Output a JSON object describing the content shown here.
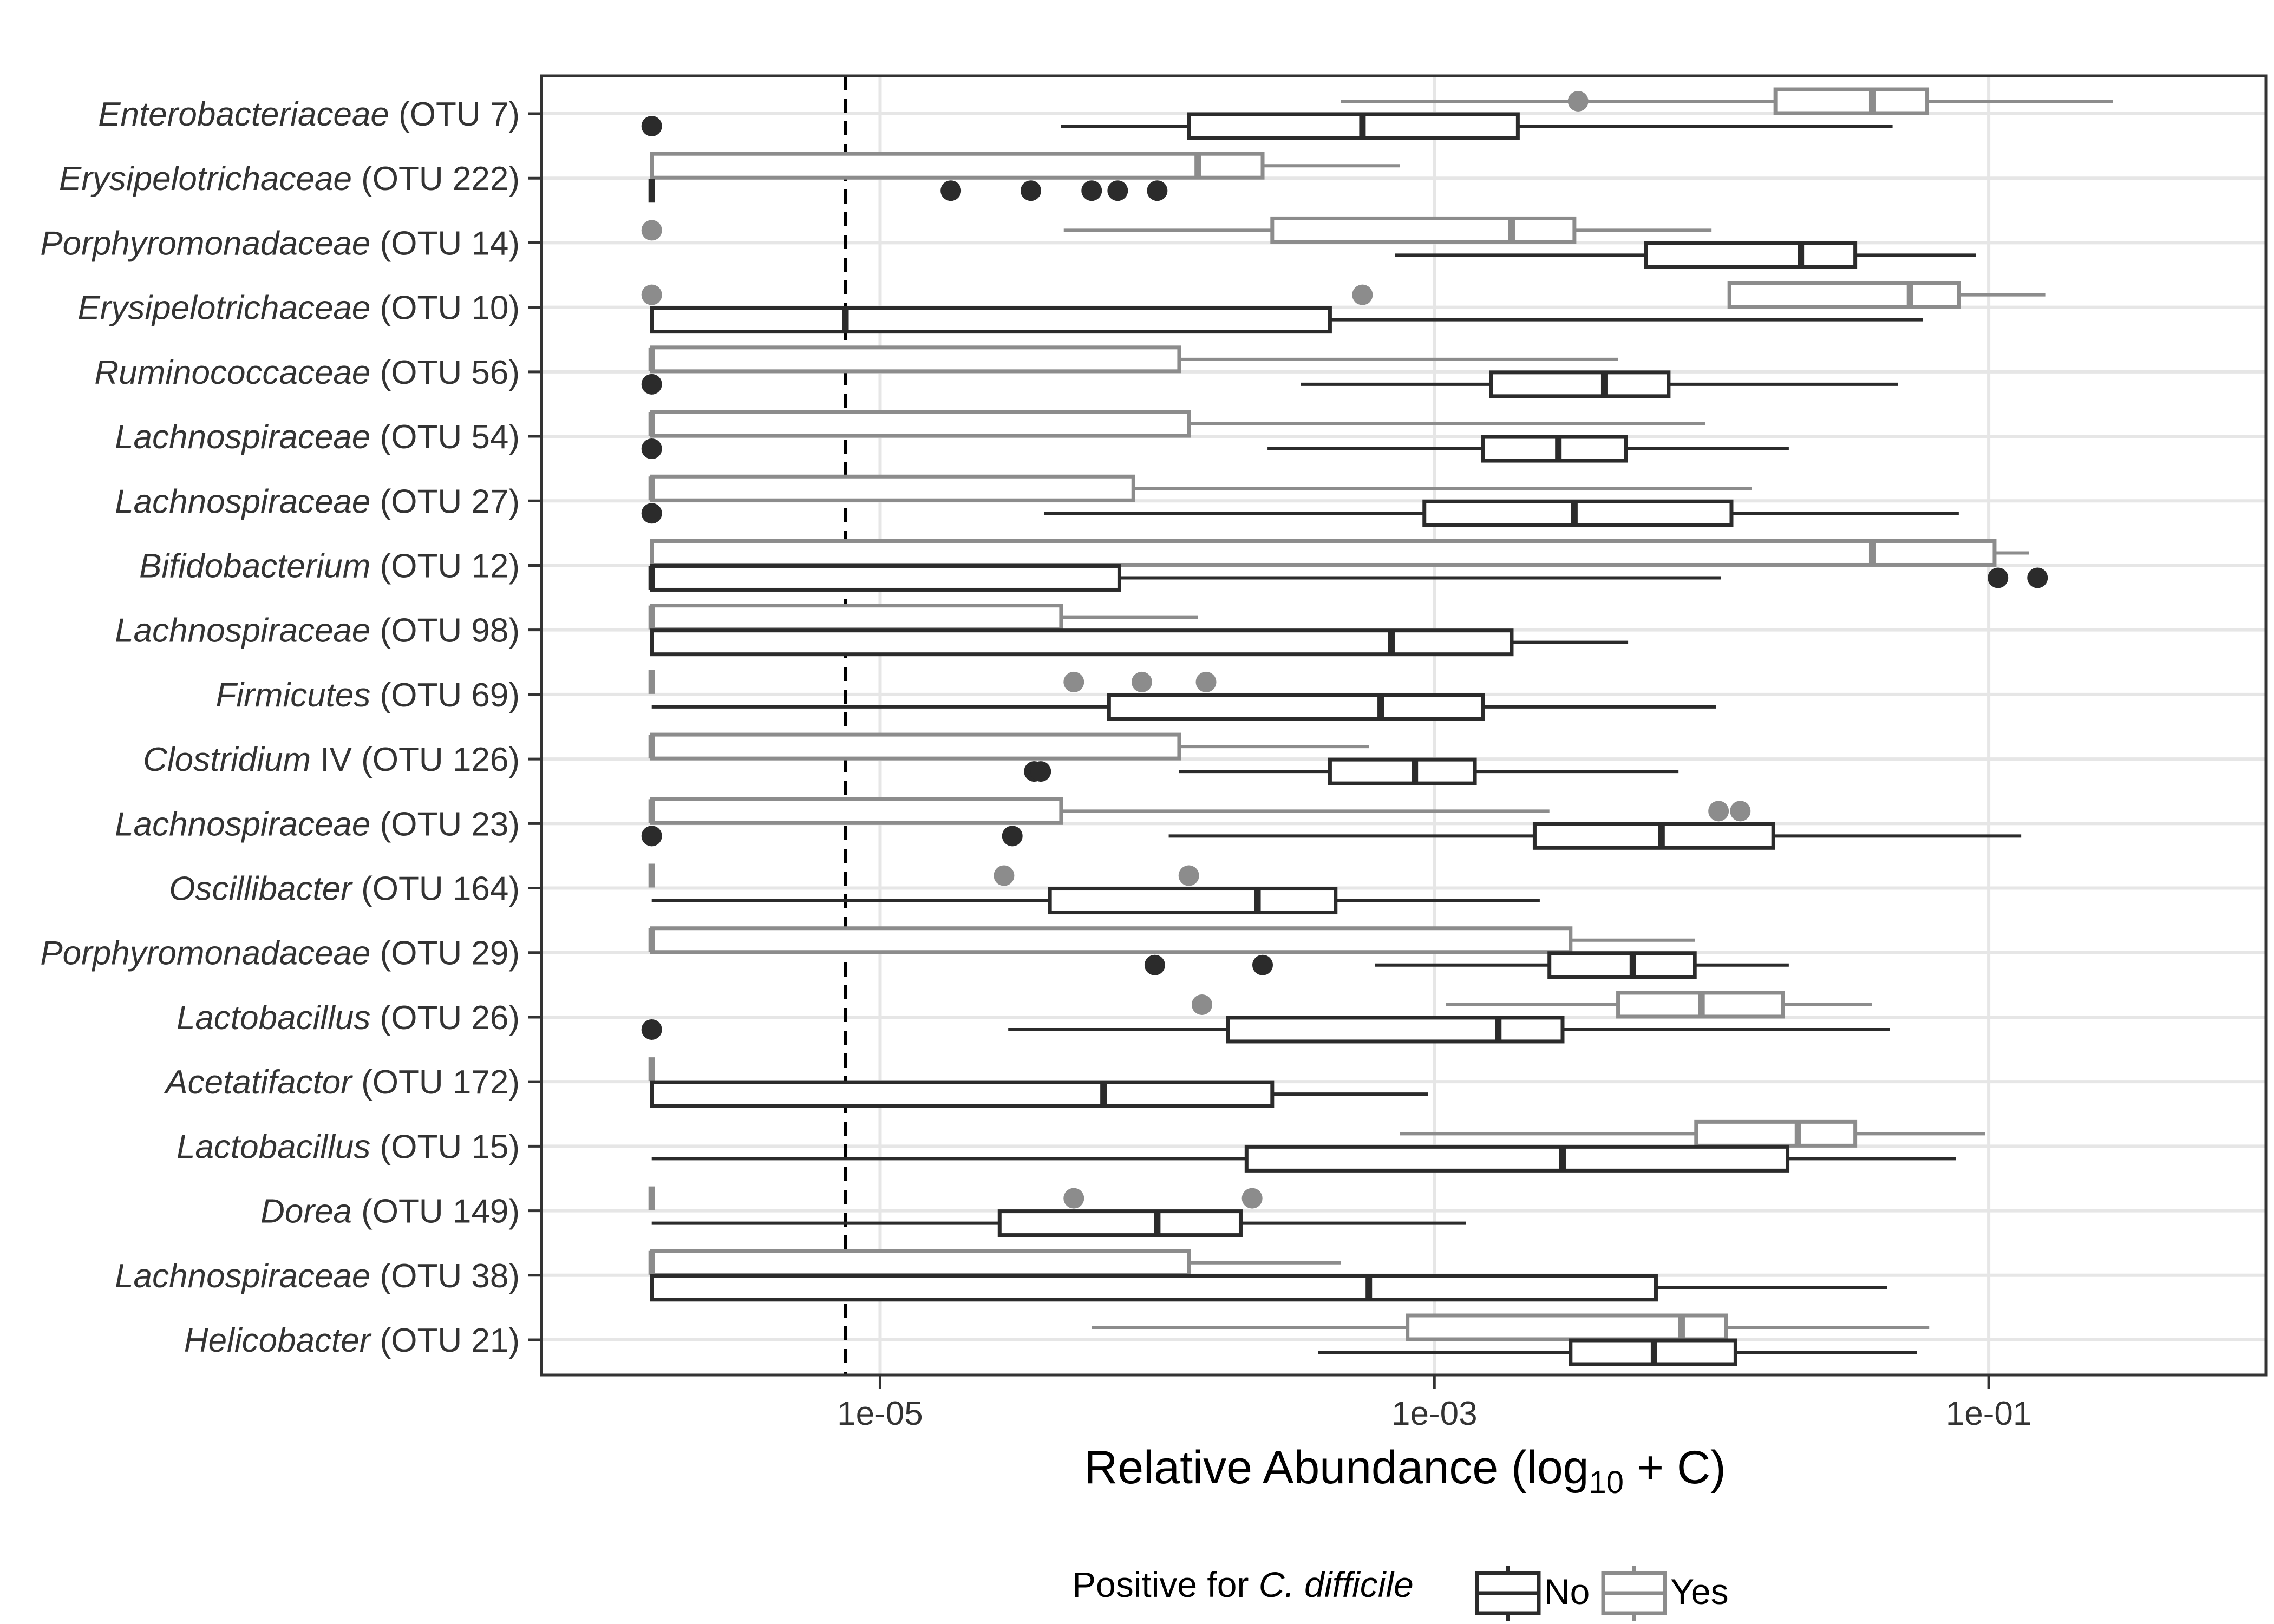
{
  "chart_data": {
    "type": "boxplot",
    "orientation": "horizontal",
    "x_scale": "log10",
    "xlabel": "Relative Abundance (log10 + C)",
    "xlabel_main": "Relative Abundance (log",
    "xlabel_sub": "10",
    "xlabel_tail": " + C)",
    "x_range": [
      6e-07,
      1
    ],
    "x_ticks": [
      {
        "value": 1e-05,
        "label": "1e-05"
      },
      {
        "value": 0.001,
        "label": "1e-03"
      },
      {
        "value": 0.1,
        "label": "1e-01"
      }
    ],
    "detection_limit": 7.5e-06,
    "grid": true,
    "legend": {
      "position": "bottom",
      "title_prefix": "Positive for ",
      "title_italic": "C. difficile",
      "entries": [
        {
          "key": "No",
          "label": "No",
          "color": "#2b2b2b"
        },
        {
          "key": "Yes",
          "label": "Yes",
          "color": "#8c8c8c"
        }
      ]
    },
    "categories": [
      {
        "taxon": "Enterobacteriaceae",
        "otu": " (OTU 7)",
        "suffix": "",
        "Yes": {
          "wlo": 0.00046,
          "q1": 0.017,
          "med": 0.038,
          "q3": 0.06,
          "whi": 0.28,
          "out": [
            0.0033
          ]
        },
        "No": {
          "wlo": 4.5e-05,
          "q1": 0.00013,
          "med": 0.00055,
          "q3": 0.002,
          "whi": 0.045,
          "out": [
            1.5e-06
          ]
        }
      },
      {
        "taxon": "Erysipelotrichaceae",
        "otu": " (OTU 222)",
        "suffix": "",
        "Yes": {
          "wlo": 1.5e-06,
          "q1": 1.5e-06,
          "med": 0.00014,
          "q3": 0.00024,
          "whi": 0.00075,
          "out": []
        },
        "No": {
          "wlo": 1.5e-06,
          "q1": 1.5e-06,
          "med": 1.5e-06,
          "q3": 1.5e-06,
          "whi": 1.5e-06,
          "out": [
            1.8e-05,
            3.5e-05,
            5.8e-05,
            7.2e-05,
            0.0001
          ]
        }
      },
      {
        "taxon": "Porphyromonadaceae",
        "otu": " (OTU 14)",
        "suffix": "",
        "Yes": {
          "wlo": 4.6e-05,
          "q1": 0.00026,
          "med": 0.0019,
          "q3": 0.0032,
          "whi": 0.01,
          "out": [
            1.5e-06
          ]
        },
        "No": {
          "wlo": 0.00072,
          "q1": 0.0058,
          "med": 0.021,
          "q3": 0.033,
          "whi": 0.09,
          "out": []
        }
      },
      {
        "taxon": "Erysipelotrichaceae",
        "otu": " (OTU 10)",
        "suffix": "",
        "Yes": {
          "wlo": 0.0116,
          "q1": 0.0116,
          "med": 0.052,
          "q3": 0.078,
          "whi": 0.16,
          "out": [
            1.5e-06,
            0.00055
          ]
        },
        "No": {
          "wlo": 1.5e-06,
          "q1": 1.5e-06,
          "med": 7.5e-06,
          "q3": 0.00042,
          "whi": 0.058,
          "out": []
        }
      },
      {
        "taxon": "Ruminococcaceae",
        "otu": " (OTU 56)",
        "suffix": "",
        "Yes": {
          "wlo": 1.5e-06,
          "q1": 1.5e-06,
          "med": 1.5e-06,
          "q3": 0.00012,
          "whi": 0.0046,
          "out": []
        },
        "No": {
          "wlo": 0.00033,
          "q1": 0.0016,
          "med": 0.0041,
          "q3": 0.007,
          "whi": 0.047,
          "out": [
            1.5e-06
          ]
        }
      },
      {
        "taxon": "Lachnospiraceae",
        "otu": " (OTU 54)",
        "suffix": "",
        "Yes": {
          "wlo": 1.5e-06,
          "q1": 1.5e-06,
          "med": 1.5e-06,
          "q3": 0.00013,
          "whi": 0.0095,
          "out": []
        },
        "No": {
          "wlo": 0.00025,
          "q1": 0.0015,
          "med": 0.0028,
          "q3": 0.0049,
          "whi": 0.019,
          "out": [
            1.5e-06
          ]
        }
      },
      {
        "taxon": "Lachnospiraceae",
        "otu": " (OTU 27)",
        "suffix": "",
        "Yes": {
          "wlo": 1.5e-06,
          "q1": 1.5e-06,
          "med": 1.5e-06,
          "q3": 8.2e-05,
          "whi": 0.014,
          "out": []
        },
        "No": {
          "wlo": 3.9e-05,
          "q1": 0.00092,
          "med": 0.0032,
          "q3": 0.0118,
          "whi": 0.078,
          "out": [
            1.5e-06
          ]
        }
      },
      {
        "taxon": "Bifidobacterium",
        "otu": " (OTU 12)",
        "suffix": "",
        "Yes": {
          "wlo": 1.5e-06,
          "q1": 1.5e-06,
          "med": 0.038,
          "q3": 0.105,
          "whi": 0.14,
          "out": []
        },
        "No": {
          "wlo": 1.5e-06,
          "q1": 1.5e-06,
          "med": 1.5e-06,
          "q3": 7.3e-05,
          "whi": 0.0108,
          "out": [
            0.108,
            0.15
          ]
        }
      },
      {
        "taxon": "Lachnospiraceae",
        "otu": " (OTU 98)",
        "suffix": "",
        "Yes": {
          "wlo": 1.5e-06,
          "q1": 1.5e-06,
          "med": 1.5e-06,
          "q3": 4.5e-05,
          "whi": 0.00014,
          "out": []
        },
        "No": {
          "wlo": 1.5e-06,
          "q1": 1.5e-06,
          "med": 0.0007,
          "q3": 0.0019,
          "whi": 0.005,
          "out": []
        }
      },
      {
        "taxon": "Firmicutes",
        "otu": " (OTU 69)",
        "suffix": "",
        "Yes": {
          "wlo": 1.5e-06,
          "q1": 1.5e-06,
          "med": 1.5e-06,
          "q3": 1.5e-06,
          "whi": 1.5e-06,
          "out": [
            5e-05,
            8.8e-05,
            0.00015
          ]
        },
        "No": {
          "wlo": 1.5e-06,
          "q1": 6.7e-05,
          "med": 0.00064,
          "q3": 0.0015,
          "whi": 0.0104,
          "out": []
        }
      },
      {
        "taxon": "Clostridium",
        "otu": " (OTU 126)",
        "suffix": " IV",
        "Yes": {
          "wlo": 1.5e-06,
          "q1": 1.5e-06,
          "med": 1.5e-06,
          "q3": 0.00012,
          "whi": 0.00058,
          "out": []
        },
        "No": {
          "wlo": 0.00012,
          "q1": 0.00042,
          "med": 0.00085,
          "q3": 0.0014,
          "whi": 0.0076,
          "out": [
            3.6e-05,
            3.8e-05
          ]
        }
      },
      {
        "taxon": "Lachnospiraceae",
        "otu": " (OTU 23)",
        "suffix": "",
        "Yes": {
          "wlo": 1.5e-06,
          "q1": 1.5e-06,
          "med": 1.5e-06,
          "q3": 4.5e-05,
          "whi": 0.0026,
          "out": [
            0.0106,
            0.0127
          ]
        },
        "No": {
          "wlo": 0.00011,
          "q1": 0.0023,
          "med": 0.0066,
          "q3": 0.0167,
          "whi": 0.131,
          "out": [
            1.5e-06,
            3e-05
          ]
        }
      },
      {
        "taxon": "Oscillibacter",
        "otu": " (OTU 164)",
        "suffix": "",
        "Yes": {
          "wlo": 1.5e-06,
          "q1": 1.5e-06,
          "med": 1.5e-06,
          "q3": 1.5e-06,
          "whi": 1.5e-06,
          "out": [
            2.8e-05,
            0.00013
          ]
        },
        "No": {
          "wlo": 1.5e-06,
          "q1": 4.1e-05,
          "med": 0.00023,
          "q3": 0.00044,
          "whi": 0.0024,
          "out": []
        }
      },
      {
        "taxon": "Porphyromonadaceae",
        "otu": " (OTU 29)",
        "suffix": "",
        "Yes": {
          "wlo": 1.5e-06,
          "q1": 1.5e-06,
          "med": 1.5e-06,
          "q3": 0.0031,
          "whi": 0.0087,
          "out": []
        },
        "No": {
          "wlo": 0.00061,
          "q1": 0.0026,
          "med": 0.0052,
          "q3": 0.0087,
          "whi": 0.019,
          "out": [
            9.8e-05,
            0.00024
          ]
        }
      },
      {
        "taxon": "Lactobacillus",
        "otu": " (OTU 26)",
        "suffix": "",
        "Yes": {
          "wlo": 0.0011,
          "q1": 0.0046,
          "med": 0.0092,
          "q3": 0.0181,
          "whi": 0.038,
          "out": [
            0.000145
          ]
        },
        "No": {
          "wlo": 2.9e-05,
          "q1": 0.00018,
          "med": 0.0017,
          "q3": 0.0029,
          "whi": 0.044,
          "out": [
            1.5e-06
          ]
        }
      },
      {
        "taxon": "Acetatifactor",
        "otu": " (OTU 172)",
        "suffix": "",
        "Yes": {
          "wlo": 1.5e-06,
          "q1": 1.5e-06,
          "med": 1.5e-06,
          "q3": 1.5e-06,
          "whi": 1.5e-06,
          "out": []
        },
        "No": {
          "wlo": 1.5e-06,
          "q1": 1.5e-06,
          "med": 6.4e-05,
          "q3": 0.00026,
          "whi": 0.00095,
          "out": []
        }
      },
      {
        "taxon": "Lactobacillus",
        "otu": " (OTU 15)",
        "suffix": "",
        "Yes": {
          "wlo": 0.00075,
          "q1": 0.0088,
          "med": 0.0205,
          "q3": 0.033,
          "whi": 0.097,
          "out": []
        },
        "No": {
          "wlo": 1.5e-06,
          "q1": 0.00021,
          "med": 0.0029,
          "q3": 0.0188,
          "whi": 0.076,
          "out": []
        }
      },
      {
        "taxon": "Dorea",
        "otu": " (OTU 149)",
        "suffix": "",
        "Yes": {
          "wlo": 1.5e-06,
          "q1": 1.5e-06,
          "med": 1.5e-06,
          "q3": 1.5e-06,
          "whi": 1.5e-06,
          "out": [
            5e-05,
            0.00022
          ]
        },
        "No": {
          "wlo": 1.5e-06,
          "q1": 2.7e-05,
          "med": 0.0001,
          "q3": 0.0002,
          "whi": 0.0013,
          "out": []
        }
      },
      {
        "taxon": "Lachnospiraceae",
        "otu": " (OTU 38)",
        "suffix": "",
        "Yes": {
          "wlo": 1.5e-06,
          "q1": 1.5e-06,
          "med": 1.5e-06,
          "q3": 0.00013,
          "whi": 0.00046,
          "out": []
        },
        "No": {
          "wlo": 1.5e-06,
          "q1": 1.5e-06,
          "med": 0.00058,
          "q3": 0.0063,
          "whi": 0.043,
          "out": []
        }
      },
      {
        "taxon": "Helicobacter",
        "otu": " (OTU 21)",
        "suffix": "",
        "Yes": {
          "wlo": 5.8e-05,
          "q1": 0.0008,
          "med": 0.0078,
          "q3": 0.0113,
          "whi": 0.061,
          "out": []
        },
        "No": {
          "wlo": 0.00038,
          "q1": 0.0031,
          "med": 0.0062,
          "q3": 0.0122,
          "whi": 0.055,
          "out": []
        }
      }
    ]
  }
}
